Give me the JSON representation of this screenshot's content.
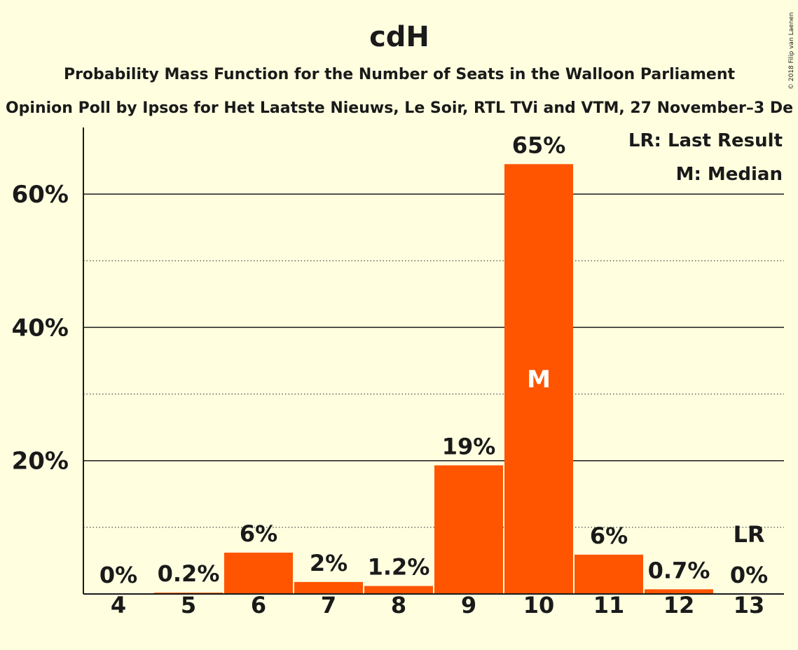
{
  "chart_data": {
    "type": "bar",
    "title": "cdH",
    "subtitle": "Probability Mass Function for the Number of Seats in the Walloon Parliament",
    "subtitle2": "Opinion Poll by Ipsos for Het Laatste Nieuws, Le Soir, RTL TVi and VTM, 27 November–3 De",
    "copyright": "© 2018 Filip van Laenen",
    "categories": [
      "4",
      "5",
      "6",
      "7",
      "8",
      "9",
      "10",
      "11",
      "12",
      "13"
    ],
    "values": [
      0,
      0.2,
      6.2,
      1.8,
      1.2,
      19.3,
      64.5,
      5.9,
      0.7,
      0
    ],
    "value_labels": [
      "0%",
      "0.2%",
      "6%",
      "2%",
      "1.2%",
      "19%",
      "65%",
      "6%",
      "0.7%",
      "0%"
    ],
    "ylim": [
      0,
      70
    ],
    "yticks": [
      20,
      40,
      60
    ],
    "ytick_labels": [
      "20%",
      "40%",
      "60%"
    ],
    "minor_gridlines": [
      10,
      30,
      50
    ],
    "median_category": "10",
    "median_marker": "M",
    "last_result_category": "13",
    "last_result_marker": "LR",
    "legend": [
      "LR: Last Result",
      "M: Median"
    ],
    "legend_position": "top-right",
    "bar_color": "#ff5500",
    "background_color": "#ffffe0",
    "grid": true
  }
}
